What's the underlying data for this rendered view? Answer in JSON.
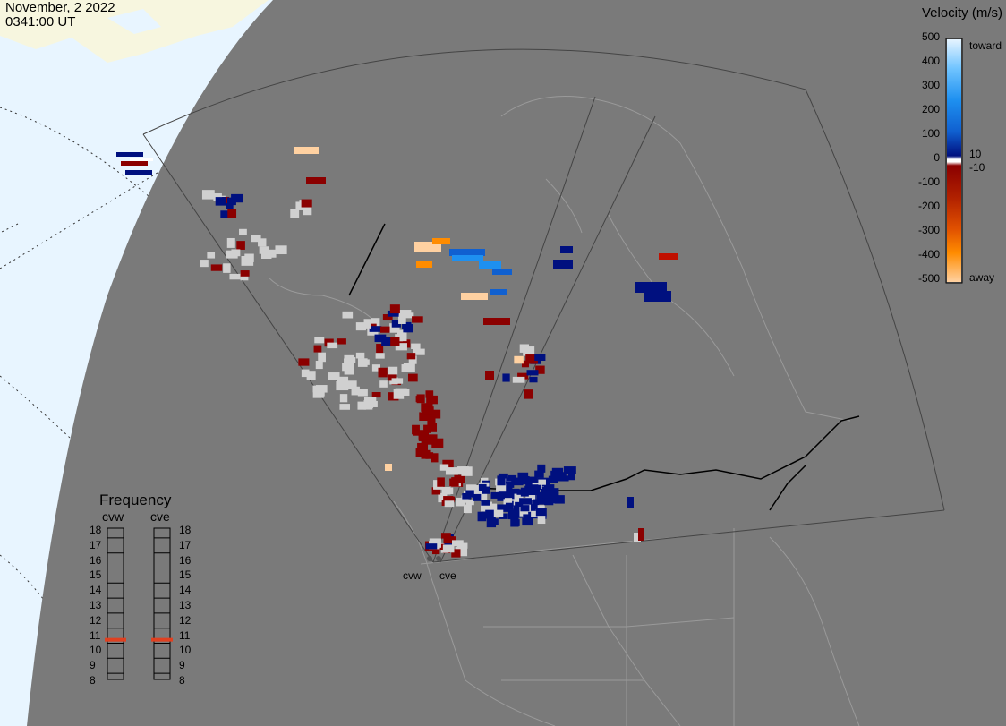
{
  "header": {
    "date": "November, 2 2022",
    "time": "0341:00 UT"
  },
  "colors": {
    "projection_background": "#e8f5ff",
    "land_arctic": "#f7f6df",
    "map_area": "#7a7a7a",
    "boundary_lines": "#9a9a9a",
    "ground_scatter": "#d0d0d0",
    "frequency_marker": "#e04020"
  },
  "velocity_legend": {
    "title": "Velocity (m/s)",
    "ticks": [
      "500",
      "400",
      "300",
      "200",
      "100",
      "0",
      "-100",
      "-200",
      "-300",
      "-400",
      "-500"
    ],
    "side_labels": {
      "top": "toward",
      "upper_zero": "10",
      "lower_zero": "-10",
      "bottom": "away"
    },
    "scale_colors": [
      "#e6f4ff",
      "#70c4ff",
      "#1e90f0",
      "#1060d0",
      "#003ab0",
      "#00107f",
      "#8b0000",
      "#b02000",
      "#e05000",
      "#ff8c00",
      "#ffd1a1"
    ]
  },
  "frequency_panel": {
    "title": "Frequency",
    "radars": [
      {
        "name": "cvw",
        "freq_mhz": 10.7
      },
      {
        "name": "cve",
        "freq_mhz": 10.7
      }
    ],
    "scale": [
      "18",
      "17",
      "16",
      "15",
      "14",
      "13",
      "12",
      "11",
      "10",
      "9",
      "8"
    ]
  },
  "radar_sites": [
    {
      "label": "cvw"
    },
    {
      "label": "cve"
    }
  ]
}
